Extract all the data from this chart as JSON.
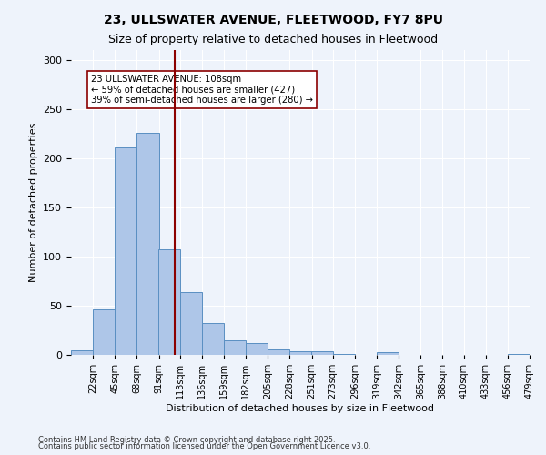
{
  "title1": "23, ULLSWATER AVENUE, FLEETWOOD, FY7 8PU",
  "title2": "Size of property relative to detached houses in Fleetwood",
  "xlabel": "Distribution of detached houses by size in Fleetwood",
  "ylabel": "Number of detached properties",
  "bins": [
    "22sqm",
    "45sqm",
    "68sqm",
    "91sqm",
    "113sqm",
    "136sqm",
    "159sqm",
    "182sqm",
    "205sqm",
    "228sqm",
    "251sqm",
    "273sqm",
    "296sqm",
    "319sqm",
    "342sqm",
    "365sqm",
    "388sqm",
    "410sqm",
    "433sqm",
    "456sqm",
    "479sqm"
  ],
  "values": [
    5,
    46,
    211,
    226,
    107,
    64,
    32,
    15,
    12,
    6,
    4,
    4,
    1,
    0,
    3,
    0,
    0,
    0,
    0,
    0,
    1
  ],
  "bar_color": "#aec6e8",
  "bar_edge_color": "#5a8fc2",
  "property_line_x": 108,
  "annotation_box_text": "23 ULLSWATER AVENUE: 108sqm\n← 59% of detached houses are smaller (427)\n39% of semi-detached houses are larger (280) →",
  "footer1": "Contains HM Land Registry data © Crown copyright and database right 2025.",
  "footer2": "Contains public sector information licensed under the Open Government Licence v3.0.",
  "bg_color": "#eef3fb",
  "plot_bg_color": "#eef3fb",
  "grid_color": "#ffffff",
  "vline_color": "#8b0000",
  "annotation_box_edge_color": "#8b0000",
  "ylim": [
    0,
    310
  ],
  "yticks": [
    0,
    50,
    100,
    150,
    200,
    250,
    300
  ]
}
